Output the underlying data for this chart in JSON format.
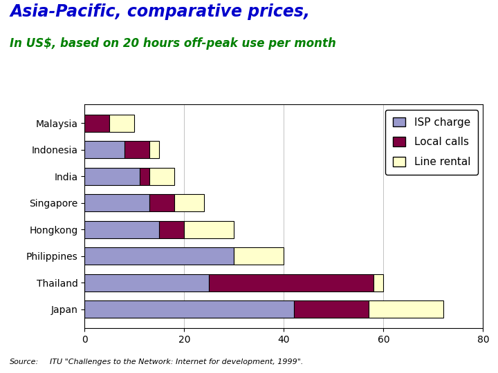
{
  "title_line1": "Asia-Pacific, comparative prices,",
  "title_line2": "In US$, based on 20 hours off-peak use per month",
  "title_line1_color": "#0000CC",
  "title_line2_color": "#008000",
  "countries": [
    "Malaysia",
    "Indonesia",
    "India",
    "Singapore",
    "Hongkong",
    "Philippines",
    "Thailand",
    "Japan"
  ],
  "isp_charge": [
    0,
    8,
    11,
    13,
    15,
    30,
    25,
    42
  ],
  "local_calls": [
    5,
    5,
    2,
    5,
    5,
    0,
    33,
    15
  ],
  "line_rental": [
    5,
    2,
    5,
    6,
    10,
    10,
    2,
    15
  ],
  "isp_color": "#9999CC",
  "local_color": "#800040",
  "rental_color": "#FFFFCC",
  "bar_edge_color": "#000000",
  "xlim": [
    0,
    80
  ],
  "xticks": [
    0,
    20,
    40,
    60,
    80
  ],
  "legend_labels": [
    "ISP charge",
    "Local calls",
    "Line rental"
  ],
  "source_label": "Source:",
  "source_text": "ITU \"Challenges to the Network: Internet for development, 1999\".",
  "background_color": "#FFFFFF",
  "plot_background_color": "#FFFFFF",
  "fig_width": 7.2,
  "fig_height": 5.4,
  "dpi": 100
}
